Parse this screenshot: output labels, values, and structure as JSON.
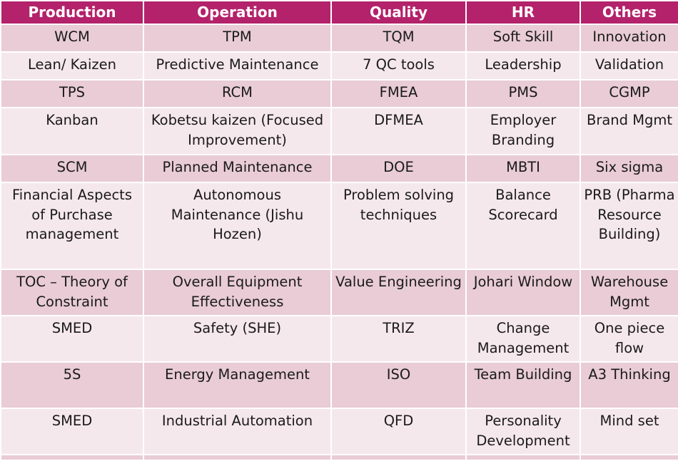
{
  "table": {
    "headers": [
      "Production",
      "Operation",
      "Quality",
      "HR",
      "Others"
    ],
    "rows": [
      [
        "WCM",
        "TPM",
        "TQM",
        "Soft Skill",
        "Innovation"
      ],
      [
        "Lean/ Kaizen",
        "Predictive Maintenance",
        "7 QC tools",
        "Leadership",
        "Validation"
      ],
      [
        "TPS",
        "RCM",
        "FMEA",
        "PMS",
        "CGMP"
      ],
      [
        "Kanban",
        "Kobetsu kaizen (Focused Improvement)",
        "DFMEA",
        "Employer Branding",
        "Brand Mgmt"
      ],
      [
        "SCM",
        "Planned Maintenance",
        "DOE",
        "MBTI",
        "Six sigma"
      ],
      [
        "Financial Aspects of Purchase management",
        "Autonomous Maintenance (Jishu Hozen)",
        "Problem solving techniques",
        "Balance Scorecard",
        "PRB (Pharma Resource Building)"
      ],
      [
        "TOC – Theory of Constraint",
        "Overall Equipment Effectiveness",
        "Value Engineering",
        "Johari Window",
        "Warehouse Mgmt"
      ],
      [
        "SMED",
        "Safety (SHE)",
        "TRIZ",
        "Change Management",
        "One piece flow"
      ],
      [
        "5S",
        "Energy Management",
        "ISO",
        "Team Building",
        "A3 Thinking"
      ],
      [
        "SMED",
        "Industrial Automation",
        "QFD",
        "Personality Development",
        "Mind set"
      ]
    ]
  },
  "colors": {
    "header_bg": "#b3226a",
    "row_dark": "#e9ccd5",
    "row_light": "#f5e8ec"
  }
}
